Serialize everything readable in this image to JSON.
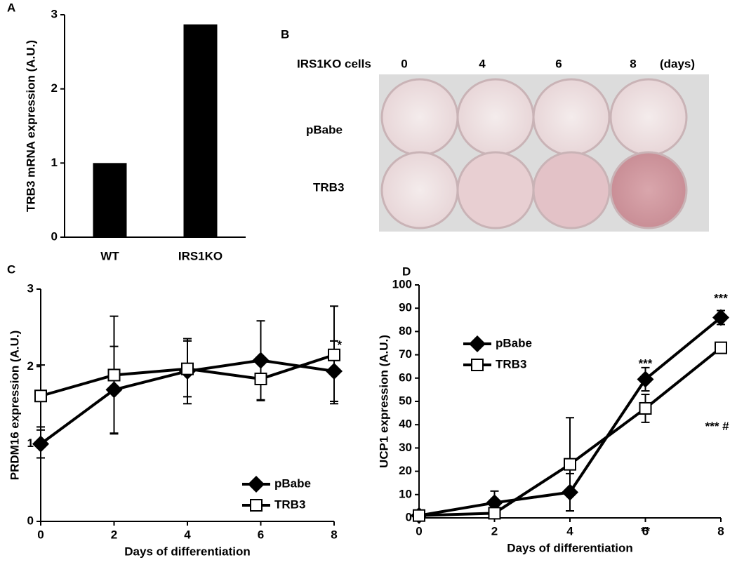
{
  "chart_data": [
    {
      "type": "bar",
      "panel": "A",
      "ylabel": "TRB3 mRNA expression (A.U.)",
      "categories": [
        "WT",
        "IRS1KO"
      ],
      "values": [
        1.0,
        2.87
      ],
      "color": "#000000",
      "ylim": [
        0,
        3
      ],
      "yticks": [
        0,
        1,
        2,
        3
      ]
    },
    {
      "type": "line",
      "panel": "C",
      "ylabel": "PRDM16 expression (A.U.)",
      "xlabel": "Days of differentiation",
      "x": [
        0,
        2,
        4,
        6,
        8
      ],
      "xlim": [
        0,
        8
      ],
      "xticks": [
        0,
        2,
        4,
        6,
        8
      ],
      "ylim": [
        0,
        3
      ],
      "yticks": [
        0,
        1,
        2,
        3
      ],
      "legend": "lower right",
      "series": [
        {
          "name": "pBabe",
          "color": "#000000",
          "marker": "diamond",
          "values": [
            1.0,
            1.7,
            1.94,
            2.08,
            1.94
          ],
          "errors": [
            0.18,
            0.56,
            0.42,
            0.51,
            0.39
          ]
        },
        {
          "name": "TRB3",
          "color": "#000000",
          "marker": "square",
          "values": [
            1.62,
            1.89,
            1.97,
            1.84,
            2.15
          ],
          "errors": [
            0.4,
            0.76,
            0.36,
            0.28,
            0.63
          ]
        }
      ],
      "annotations": [
        {
          "text": "*",
          "x": 8.15,
          "y": 2.27
        }
      ]
    },
    {
      "type": "line",
      "panel": "D",
      "ylabel": "UCP1 expression (A.U.)",
      "xlabel": "Days of differentiation",
      "x": [
        0,
        2,
        4,
        6,
        8
      ],
      "xlim": [
        0,
        8
      ],
      "xticks": [
        0,
        2,
        4,
        6,
        8
      ],
      "ylim": [
        0,
        100
      ],
      "yticks": [
        0,
        10,
        20,
        30,
        40,
        50,
        60,
        70,
        80,
        90,
        100
      ],
      "legend": "upper left",
      "series": [
        {
          "name": "pBabe",
          "color": "#000000",
          "marker": "diamond",
          "values": [
            1,
            6.5,
            11,
            59.5,
            86
          ],
          "errors": [
            1,
            5,
            8,
            5,
            3
          ]
        },
        {
          "name": "TRB3",
          "color": "#000000",
          "marker": "square",
          "values": [
            1,
            2,
            23,
            47,
            73
          ],
          "errors": [
            1,
            1,
            20,
            6,
            2
          ]
        }
      ],
      "annotations": [
        {
          "text": "***",
          "x": 6,
          "y": 66
        },
        {
          "text": "**",
          "x": 6,
          "y": -6
        },
        {
          "text": "***",
          "x": 8,
          "y": 94
        },
        {
          "text": "*** #",
          "x": 7.9,
          "y": 39
        }
      ]
    }
  ],
  "panel_b": {
    "label": "B",
    "header": "IRS1KO cells",
    "columns": [
      "0",
      "4",
      "6",
      "8"
    ],
    "unit": "(days)",
    "rows": [
      "pBabe",
      "TRB3"
    ]
  }
}
